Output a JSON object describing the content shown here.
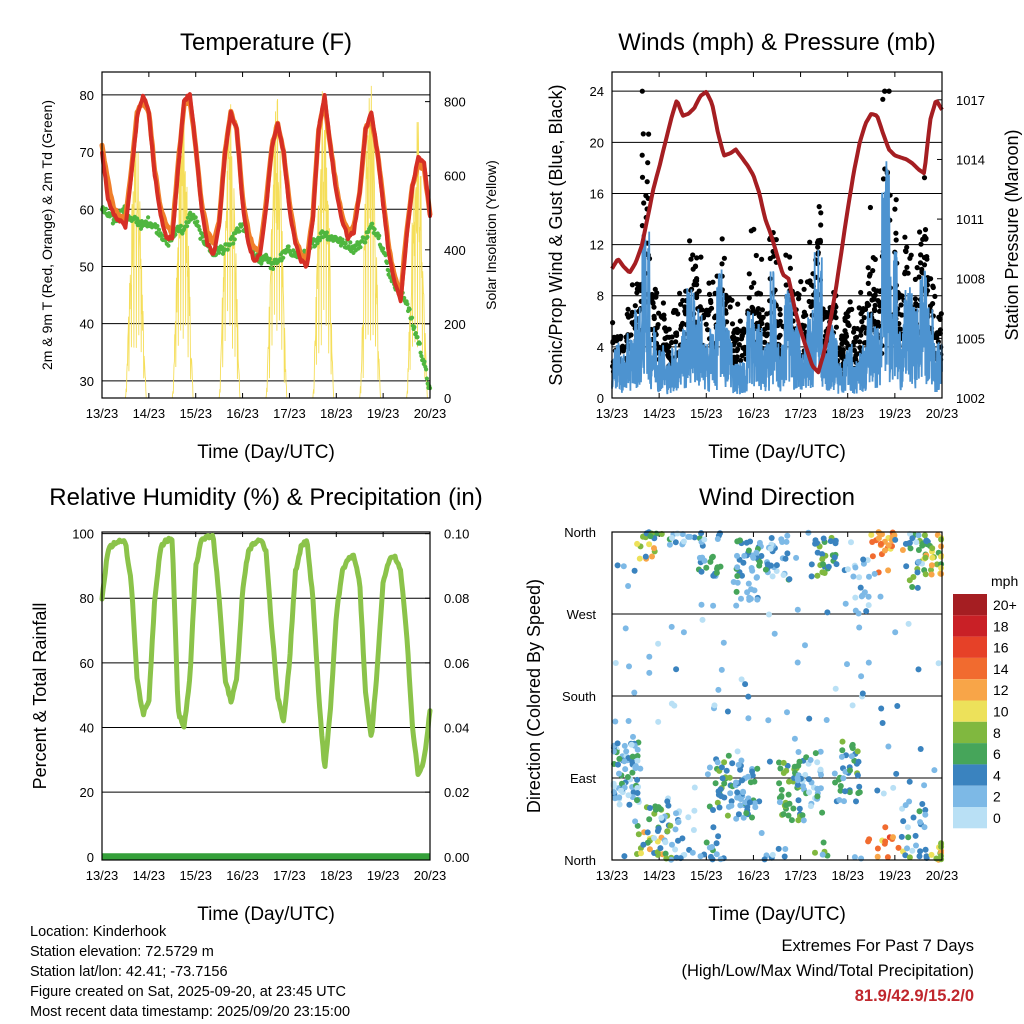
{
  "colors": {
    "red": "#d62f25",
    "orange": "#f07f2a",
    "green": "#4fb63f",
    "yellow": "#f5de5a",
    "blue": "#4d93d0",
    "black": "#000000",
    "maroon": "#a51e22",
    "lightgreen": "#8bc34a",
    "darkgreen": "#35a03a"
  },
  "x_ticks": [
    "13/23",
    "14/23",
    "15/23",
    "16/23",
    "17/23",
    "18/23",
    "19/23",
    "20/23"
  ],
  "xlabel": "Time (Day/UTC)",
  "chart_data": [
    {
      "id": "temperature",
      "type": "line",
      "title": "Temperature (F)",
      "ylabel_left": "2m & 9m T (Red, Orange) & 2m Td (Green)",
      "ylabel_right": "Solar Insolation (Yellow)",
      "ylim": [
        27,
        84
      ],
      "y_ticks": [
        30,
        40,
        50,
        60,
        70,
        80
      ],
      "y2lim": [
        0,
        880
      ],
      "y2_ticks": [
        0,
        200,
        400,
        600,
        800
      ],
      "x_days": [
        0,
        0.125,
        0.25,
        0.375,
        0.5,
        0.625,
        0.75,
        0.875,
        1,
        1.125,
        1.25,
        1.375,
        1.5,
        1.625,
        1.75,
        1.875,
        2,
        2.125,
        2.25,
        2.375,
        2.5,
        2.625,
        2.75,
        2.875,
        3,
        3.125,
        3.25,
        3.375,
        3.5,
        3.625,
        3.75,
        3.875,
        4,
        4.125,
        4.25,
        4.375,
        4.5,
        4.625,
        4.75,
        4.875,
        5,
        5.125,
        5.25,
        5.375,
        5.5,
        5.625,
        5.75,
        5.875,
        6,
        6.125,
        6.25,
        6.375,
        6.5,
        6.625,
        6.75,
        6.875,
        7
      ],
      "series": [
        {
          "name": "2m T",
          "color": "red",
          "values": [
            70,
            62,
            59,
            58,
            57,
            66,
            76,
            80,
            77,
            66,
            59,
            55,
            55,
            67,
            79,
            80,
            71,
            60,
            54,
            52,
            57,
            70,
            77,
            74,
            61,
            54,
            51,
            52,
            60,
            71,
            75,
            70,
            60,
            54,
            51,
            50,
            58,
            74,
            80,
            71,
            63,
            58,
            55,
            56,
            63,
            74,
            77,
            70,
            61,
            52,
            47,
            44,
            55,
            64,
            69,
            68,
            59
          ]
        },
        {
          "name": "9m T",
          "color": "orange",
          "values": [
            71,
            65,
            60,
            59,
            58,
            67,
            77,
            79,
            77,
            67,
            60,
            57,
            56,
            68,
            78,
            79,
            71,
            61,
            56,
            54,
            58,
            70,
            77,
            74,
            62,
            56,
            53,
            53,
            61,
            71,
            75,
            70,
            61,
            55,
            52,
            51,
            59,
            74,
            79,
            71,
            64,
            59,
            56,
            57,
            63,
            74,
            76,
            70,
            62,
            53,
            48,
            45,
            56,
            64,
            68,
            67,
            59
          ]
        },
        {
          "name": "2m Td",
          "color": "green",
          "values": [
            60,
            59,
            58,
            59,
            60,
            58,
            58,
            57,
            58,
            57,
            56,
            54,
            55,
            57,
            56,
            59,
            58,
            55,
            54,
            52,
            53,
            53,
            54,
            56,
            57,
            55,
            52,
            51,
            52,
            50,
            51,
            52,
            53,
            52,
            52,
            52,
            54,
            55,
            56,
            55,
            55,
            54,
            54,
            53,
            54,
            55,
            57,
            56,
            53,
            49,
            47,
            45,
            44,
            40,
            37,
            33,
            28
          ]
        }
      ],
      "solar": {
        "name": "Solar Insolation",
        "color": "yellow",
        "daylight_start": 0.5,
        "daylight_end": 0.95,
        "daily_peaks": [
          720,
          790,
          850,
          830,
          880,
          860,
          780,
          850
        ]
      }
    },
    {
      "id": "winds",
      "type": "line+scatter",
      "title": "Winds (mph) & Pressure (mb)",
      "ylabel_left": "Sonic/Prop Wind & Gust (Blue, Black)",
      "ylabel_right": "Station Pressure (Maroon)",
      "ylim": [
        0,
        25.5
      ],
      "y_ticks": [
        0,
        4,
        8,
        12,
        16,
        20,
        24
      ],
      "y2lim": [
        1002,
        1018.4
      ],
      "y2_ticks": [
        1002,
        1005,
        1008,
        1011,
        1014,
        1017
      ],
      "x_days": [
        0,
        0.125,
        0.25,
        0.375,
        0.5,
        0.625,
        0.75,
        0.875,
        1,
        1.125,
        1.25,
        1.375,
        1.5,
        1.625,
        1.75,
        1.875,
        2,
        2.125,
        2.25,
        2.375,
        2.5,
        2.625,
        2.75,
        2.875,
        3,
        3.125,
        3.25,
        3.375,
        3.5,
        3.625,
        3.75,
        3.875,
        4,
        4.125,
        4.25,
        4.375,
        4.5,
        4.625,
        4.75,
        4.875,
        5,
        5.125,
        5.25,
        5.375,
        5.5,
        5.625,
        5.75,
        5.875,
        6,
        6.125,
        6.25,
        6.375,
        6.5,
        6.625,
        6.75,
        6.875,
        7
      ],
      "series": [
        {
          "name": "Station Pressure",
          "color": "maroon",
          "values": [
            1008.5,
            1009,
            1008.6,
            1008.3,
            1008.8,
            1009.6,
            1011,
            1012.5,
            1013.6,
            1014.8,
            1016,
            1017,
            1016.2,
            1016.3,
            1016.6,
            1017.2,
            1017.4,
            1016.8,
            1015.3,
            1014.2,
            1014.3,
            1014.5,
            1014.1,
            1013.7,
            1013.2,
            1012.3,
            1011,
            1010.2,
            1009.2,
            1008.2,
            1008,
            1006.5,
            1005.4,
            1004.5,
            1003.6,
            1003.3,
            1004.3,
            1005.8,
            1007.5,
            1009.5,
            1011.5,
            1013.3,
            1014.8,
            1015.8,
            1016.3,
            1016.2,
            1015.3,
            1014.5,
            1014.2,
            1014.1,
            1014,
            1013.8,
            1013.5,
            1013.3,
            1016,
            1017,
            1016.5
          ]
        }
      ],
      "wind_mean_by_segment": [
        3,
        2.5,
        3.5,
        5,
        9,
        4,
        3,
        2,
        3,
        4,
        6,
        5,
        3,
        4,
        7,
        4,
        2,
        2,
        5,
        4,
        3,
        7,
        3,
        6,
        4,
        3,
        5,
        8,
        3,
        4,
        2,
        3,
        2,
        3,
        5,
        4,
        13,
        8,
        4,
        6,
        5,
        7,
        5,
        3
      ],
      "gust_mean_by_segment": [
        4,
        3.5,
        5,
        7,
        15,
        6,
        5,
        4,
        5,
        6,
        9,
        8,
        5,
        6,
        10,
        6,
        4,
        4,
        7,
        6,
        5,
        10,
        5,
        8,
        6,
        5,
        7,
        11,
        5,
        6,
        3.5,
        5,
        4,
        5,
        8,
        6,
        19,
        12,
        6,
        9,
        7,
        10,
        7,
        5
      ]
    },
    {
      "id": "humidity",
      "type": "line",
      "title": "Relative Humidity (%) & Precipitation (in)",
      "ylabel_left": "Percent & Total Rainfall",
      "ylim": [
        -1,
        100.5
      ],
      "y_ticks": [
        0,
        20,
        40,
        60,
        80,
        100
      ],
      "y2lim": [
        -0.001,
        0.1005
      ],
      "y2_ticks": [
        "0.00",
        "0.02",
        "0.04",
        "0.06",
        "0.08",
        "0.10"
      ],
      "x_days": [
        0,
        0.125,
        0.25,
        0.375,
        0.5,
        0.625,
        0.75,
        0.875,
        1,
        1.125,
        1.25,
        1.375,
        1.5,
        1.625,
        1.75,
        1.875,
        2,
        2.125,
        2.25,
        2.375,
        2.5,
        2.625,
        2.75,
        2.875,
        3,
        3.125,
        3.25,
        3.375,
        3.5,
        3.625,
        3.75,
        3.875,
        4,
        4.125,
        4.25,
        4.375,
        4.5,
        4.625,
        4.75,
        4.875,
        5,
        5.125,
        5.25,
        5.375,
        5.5,
        5.625,
        5.75,
        5.875,
        6,
        6.125,
        6.25,
        6.375,
        6.5,
        6.625,
        6.75,
        6.875,
        7
      ],
      "series": [
        {
          "name": "Relative Humidity",
          "color": "lightgreen",
          "values": [
            80,
            95,
            97,
            98,
            97,
            85,
            55,
            44,
            48,
            80,
            96,
            98,
            98,
            45,
            40,
            55,
            90,
            98,
            99,
            99,
            80,
            55,
            48,
            55,
            82,
            95,
            97,
            98,
            95,
            70,
            50,
            42,
            60,
            88,
            96,
            98,
            80,
            50,
            27,
            45,
            75,
            88,
            92,
            93,
            85,
            50,
            37,
            58,
            85,
            92,
            93,
            88,
            70,
            40,
            25,
            30,
            45
          ]
        },
        {
          "name": "Total Precipitation",
          "color": "darkgreen",
          "values": [
            0,
            0,
            0,
            0,
            0,
            0,
            0,
            0,
            0,
            0,
            0,
            0,
            0,
            0,
            0,
            0,
            0,
            0,
            0,
            0,
            0,
            0,
            0,
            0,
            0,
            0,
            0,
            0,
            0,
            0,
            0,
            0,
            0,
            0,
            0,
            0,
            0,
            0,
            0,
            0,
            0,
            0,
            0,
            0,
            0,
            0,
            0,
            0,
            0,
            0,
            0,
            0,
            0,
            0,
            0,
            0,
            0
          ]
        }
      ]
    },
    {
      "id": "direction",
      "type": "scatter",
      "title": "Wind Direction",
      "ylabel": "Direction (Colored By Speed)",
      "y_ticks": [
        "North",
        "East",
        "South",
        "West",
        "North"
      ],
      "y_degrees": [
        0,
        90,
        180,
        270,
        360
      ],
      "colorbar_title": "mph",
      "colorbar_labels": [
        "20+",
        "18",
        "16",
        "14",
        "12",
        "10",
        "8",
        "6",
        "4",
        "2",
        "0"
      ],
      "colorbar_colors": [
        "#a51e22",
        "#c92026",
        "#e64128",
        "#f16b2f",
        "#f8a548",
        "#ede15a",
        "#80b83f",
        "#46a55a",
        "#3a83bf",
        "#7db9e6",
        "#b9e0f5"
      ],
      "clusters": [
        {
          "day": 0.3,
          "dir": 95,
          "n": 70,
          "speed": 3
        },
        {
          "day": 0.8,
          "dir": 5,
          "n": 25,
          "speed": 9
        },
        {
          "day": 1.0,
          "dir": 25,
          "n": 40,
          "speed": 5
        },
        {
          "day": 1.5,
          "dir": 20,
          "n": 30,
          "speed": 2
        },
        {
          "day": 2.3,
          "dir": 80,
          "n": 35,
          "speed": 5
        },
        {
          "day": 2.1,
          "dir": 345,
          "n": 35,
          "speed": 4
        },
        {
          "day": 2.9,
          "dir": 75,
          "n": 40,
          "speed": 4
        },
        {
          "day": 2.9,
          "dir": 320,
          "n": 45,
          "speed": 4
        },
        {
          "day": 3.5,
          "dir": 340,
          "n": 30,
          "speed": 3
        },
        {
          "day": 3.8,
          "dir": 75,
          "n": 40,
          "speed": 6
        },
        {
          "day": 4.2,
          "dir": 85,
          "n": 35,
          "speed": 3
        },
        {
          "day": 4.5,
          "dir": 345,
          "n": 35,
          "speed": 6
        },
        {
          "day": 5.0,
          "dir": 95,
          "n": 35,
          "speed": 5
        },
        {
          "day": 5.2,
          "dir": 300,
          "n": 20,
          "speed": 2
        },
        {
          "day": 5.7,
          "dir": 350,
          "n": 30,
          "speed": 13
        },
        {
          "day": 5.9,
          "dir": 5,
          "n": 10,
          "speed": 12
        },
        {
          "day": 6.4,
          "dir": 30,
          "n": 25,
          "speed": 3
        },
        {
          "day": 6.5,
          "dir": 330,
          "n": 30,
          "speed": 6
        },
        {
          "day": 6.9,
          "dir": 345,
          "n": 35,
          "speed": 9
        }
      ]
    }
  ],
  "info": {
    "location": "Location: Kinderhook",
    "elevation": "Station elevation: 72.5729 m",
    "latlon": "Station lat/lon: 42.41; -73.7156",
    "created": "Figure created on Sat, 2025-09-20, at 23:45 UTC",
    "recent": "Most recent data timestamp: 2025/09/20 23:15:00"
  },
  "extremes": {
    "title": "Extremes For Past 7 Days",
    "subtitle": "(High/Low/Max Wind/Total Precipitation)",
    "values": "81.9/42.9/15.2/0"
  }
}
